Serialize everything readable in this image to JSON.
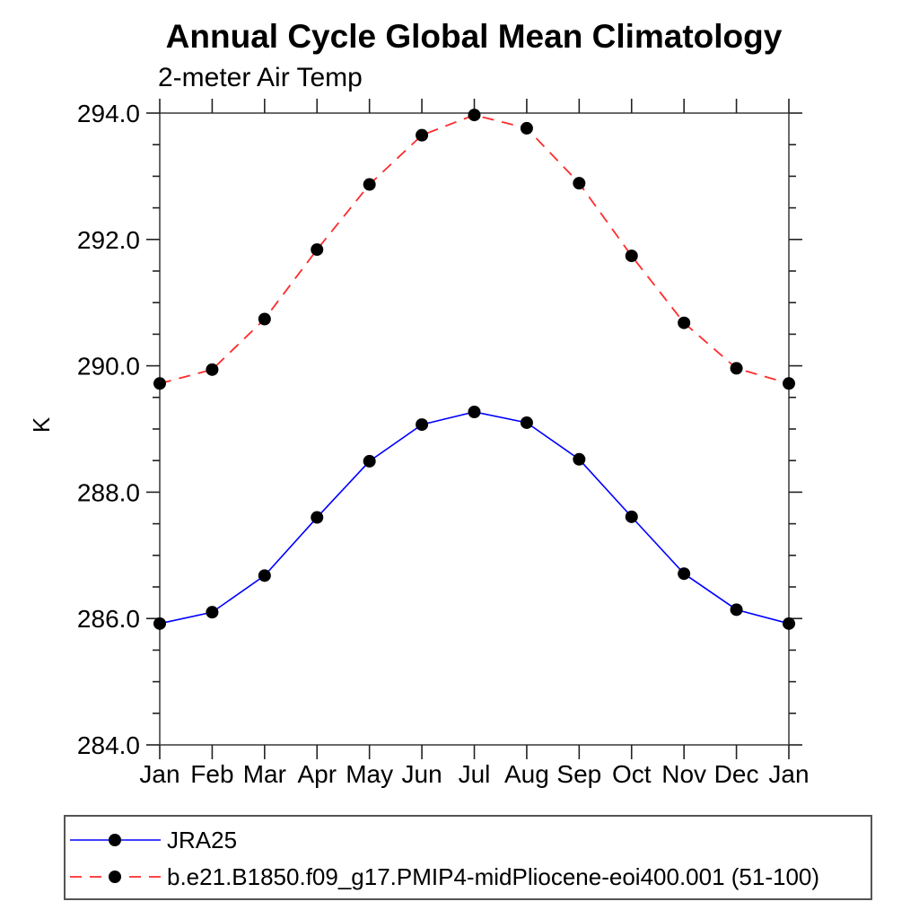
{
  "chart_data": {
    "type": "line",
    "title": "Annual Cycle Global Mean Climatology",
    "subtitle": "2-meter Air Temp",
    "ylabel": "K",
    "xlabel": "",
    "x_categories": [
      "Jan",
      "Feb",
      "Mar",
      "Apr",
      "May",
      "Jun",
      "Jul",
      "Aug",
      "Sep",
      "Oct",
      "Nov",
      "Dec",
      "Jan"
    ],
    "ylim": [
      284.0,
      294.0
    ],
    "y_major_tick_interval": 2.0,
    "y_minor_tick_interval": 0.5,
    "y_tick_labels": [
      "284.0",
      "286.0",
      "288.0",
      "290.0",
      "292.0",
      "294.0"
    ],
    "grid": false,
    "legend_position": "bottom-left-box",
    "series": [
      {
        "name": "JRA25",
        "color": "#0000ff",
        "line_style": "solid",
        "line_width": 1.6,
        "marker": "filled-circle",
        "marker_color": "#000000",
        "values": [
          285.92,
          286.1,
          286.68,
          287.6,
          288.49,
          289.07,
          289.27,
          289.1,
          288.52,
          287.61,
          286.71,
          286.14,
          285.92
        ]
      },
      {
        "name": "b.e21.B1850.f09_g17.PMIP4-midPliocene-eoi400.001 (51-100)",
        "color": "#ff2b2b",
        "line_style": "dashed",
        "line_width": 1.8,
        "marker": "filled-circle",
        "marker_color": "#000000",
        "values": [
          289.72,
          289.94,
          290.74,
          291.84,
          292.87,
          293.65,
          293.97,
          293.76,
          292.89,
          291.74,
          290.68,
          289.96,
          289.72
        ]
      }
    ]
  },
  "colors": {
    "background": "#ffffff",
    "text": "#000000",
    "axis_frame": "#444444",
    "tick": "#222222",
    "legend_border": "#555555"
  }
}
